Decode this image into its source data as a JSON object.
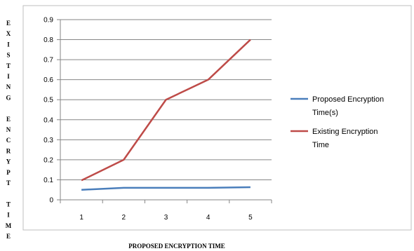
{
  "chart_data": {
    "type": "line",
    "categories": [
      "1",
      "2",
      "3",
      "4",
      "5"
    ],
    "series": [
      {
        "name": "Proposed Encryption Time(s)",
        "legend_lines": [
          "Proposed Encryption",
          "Time(s)"
        ],
        "values": [
          0.05,
          0.06,
          0.06,
          0.06,
          0.063
        ],
        "color": "#4a7ebb"
      },
      {
        "name": "Existing Encryption Time",
        "legend_lines": [
          "Existing Encryption",
          "Time"
        ],
        "values": [
          0.097,
          0.2,
          0.5,
          0.6,
          0.8
        ],
        "color": "#be4b48"
      }
    ],
    "xlabel": "PROPOSED ENCRYPTION TIME",
    "ylabel": "EXISTING ENCRYPT TIME",
    "ylabel_letters": [
      "E",
      "X",
      "I",
      "S",
      "T",
      "I",
      "N",
      "G",
      "",
      "E",
      "N",
      "C",
      "R",
      "Y",
      "P",
      "T",
      "",
      "T",
      "I",
      "M",
      "E"
    ],
    "ylim": [
      0,
      0.9
    ],
    "yticks": [
      "0",
      "0.1",
      "0.2",
      "0.3",
      "0.4",
      "0.5",
      "0.6",
      "0.7",
      "0.8",
      "0.9"
    ],
    "grid": true,
    "legend_position": "right"
  }
}
